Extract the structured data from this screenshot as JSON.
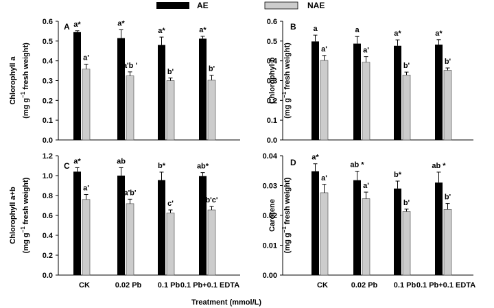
{
  "legend": {
    "ae": "AE",
    "nae": "NAE"
  },
  "colors": {
    "ae": "#000000",
    "nae": "#cccccc"
  },
  "xlabel": "Treatment (mmol/L)",
  "chart_data": [
    {
      "type": "bar",
      "panel": "A",
      "ylabel_main": "Chlorophyll a",
      "ylabel_unit_pre": "(mg g",
      "ylabel_unit_sup": "−1",
      "ylabel_unit_post": " fresh weight)",
      "yticks": [
        "0.0",
        "0.1",
        "0.2",
        "0.3",
        "0.4",
        "0.5",
        "0.6"
      ],
      "ylim": [
        0,
        0.6
      ],
      "categories": [
        "CK",
        "0.02 Pb",
        "0.1 Pb",
        "0.1 Pb+0.1 EDTA"
      ],
      "series": [
        {
          "name": "AE",
          "values": [
            0.545,
            0.515,
            0.48,
            0.512
          ],
          "errors": [
            0.007,
            0.042,
            0.04,
            0.012
          ],
          "labels": [
            "a*",
            "a*",
            "a*",
            "a*"
          ]
        },
        {
          "name": "NAE",
          "values": [
            0.358,
            0.324,
            0.3,
            0.302
          ],
          "errors": [
            0.025,
            0.02,
            0.013,
            0.025
          ],
          "labels": [
            "a'",
            "a'b '",
            "b'",
            "b'"
          ]
        }
      ]
    },
    {
      "type": "bar",
      "panel": "B",
      "ylabel_main": "Chlorophyl b",
      "ylabel_unit_pre": "(mg g",
      "ylabel_unit_sup": "−1",
      "ylabel_unit_post": " fresh weight)",
      "yticks": [
        "0.0",
        "0.1",
        "0.2",
        "0.3",
        "0.4",
        "0.5",
        "0.6"
      ],
      "ylim": [
        0,
        0.6
      ],
      "categories": [
        "CK",
        "0.02 Pb",
        "0.1 Pb",
        "0.1 Pb+0.1 EDTA"
      ],
      "series": [
        {
          "name": "AE",
          "values": [
            0.498,
            0.487,
            0.476,
            0.482
          ],
          "errors": [
            0.032,
            0.036,
            0.03,
            0.025
          ],
          "labels": [
            "a",
            "a",
            "a*",
            "a*"
          ]
        },
        {
          "name": "NAE",
          "values": [
            0.402,
            0.393,
            0.328,
            0.352
          ],
          "errors": [
            0.025,
            0.028,
            0.015,
            0.012
          ],
          "labels": [
            "a'",
            "a'",
            "b'",
            "b'"
          ]
        }
      ]
    },
    {
      "type": "bar",
      "panel": "C",
      "ylabel_main": "Chlorophyll a+b",
      "ylabel_unit_pre": "(mg g",
      "ylabel_unit_sup": "−1",
      "ylabel_unit_post": " fresh weight)",
      "yticks": [
        "0.0",
        "0.2",
        "0.4",
        "0.6",
        "0.8",
        "1.0",
        "1.2"
      ],
      "ylim": [
        0,
        1.2
      ],
      "categories": [
        "CK",
        "0.02 Pb",
        "0.1 Pb",
        "0.1 Pb+0.1 EDTA"
      ],
      "series": [
        {
          "name": "AE",
          "values": [
            1.04,
            1.0,
            0.955,
            0.995
          ],
          "errors": [
            0.04,
            0.08,
            0.08,
            0.035
          ],
          "labels": [
            "a*",
            "ab",
            "b*",
            "ab*"
          ]
        },
        {
          "name": "NAE",
          "values": [
            0.76,
            0.718,
            0.625,
            0.655
          ],
          "errors": [
            0.05,
            0.045,
            0.03,
            0.035
          ],
          "labels": [
            "a'",
            "a'b'",
            "c'",
            "b'c'"
          ]
        }
      ]
    },
    {
      "type": "bar",
      "panel": "D",
      "ylabel_main": "Carotene",
      "ylabel_unit_pre": "(mg g",
      "ylabel_unit_sup": "−1",
      "ylabel_unit_post": " fresh weight)",
      "yticks": [
        "0.00",
        "0.01",
        "0.02",
        "0.03",
        "0.04"
      ],
      "ylim": [
        0,
        0.04
      ],
      "categories": [
        "CK",
        "0.02 Pb",
        "0.1 Pb",
        "0.1 Pb+0.1 EDTA"
      ],
      "series": [
        {
          "name": "AE",
          "values": [
            0.0348,
            0.0318,
            0.029,
            0.031
          ],
          "errors": [
            0.0025,
            0.003,
            0.0025,
            0.0035
          ],
          "labels": [
            "a*",
            "ab *",
            "b*",
            "ab *"
          ]
        },
        {
          "name": "NAE",
          "values": [
            0.0276,
            0.0256,
            0.0213,
            0.022
          ],
          "errors": [
            0.0028,
            0.0022,
            0.0008,
            0.002
          ],
          "labels": [
            "a'",
            "a'",
            "b'",
            "b'"
          ]
        }
      ]
    }
  ]
}
